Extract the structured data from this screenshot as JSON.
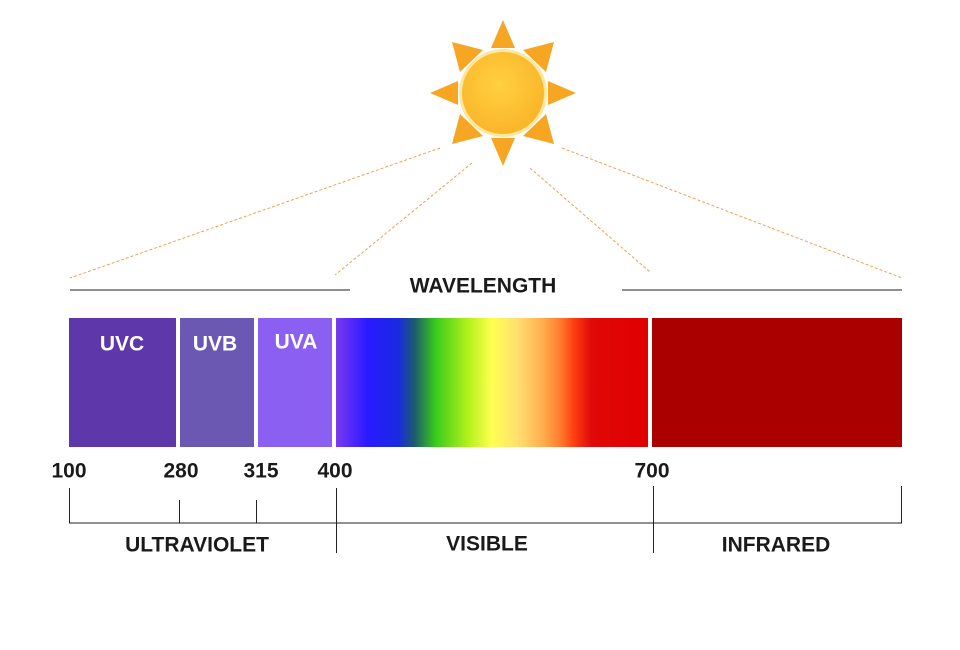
{
  "title": "WAVELENGTH",
  "bands": [
    "UVC",
    "UVB",
    "UVA"
  ],
  "ticks": [
    100,
    280,
    315,
    400,
    700
  ],
  "regions": [
    "ULTRAVIOLET",
    "VISIBLE",
    "INFRARED"
  ]
}
